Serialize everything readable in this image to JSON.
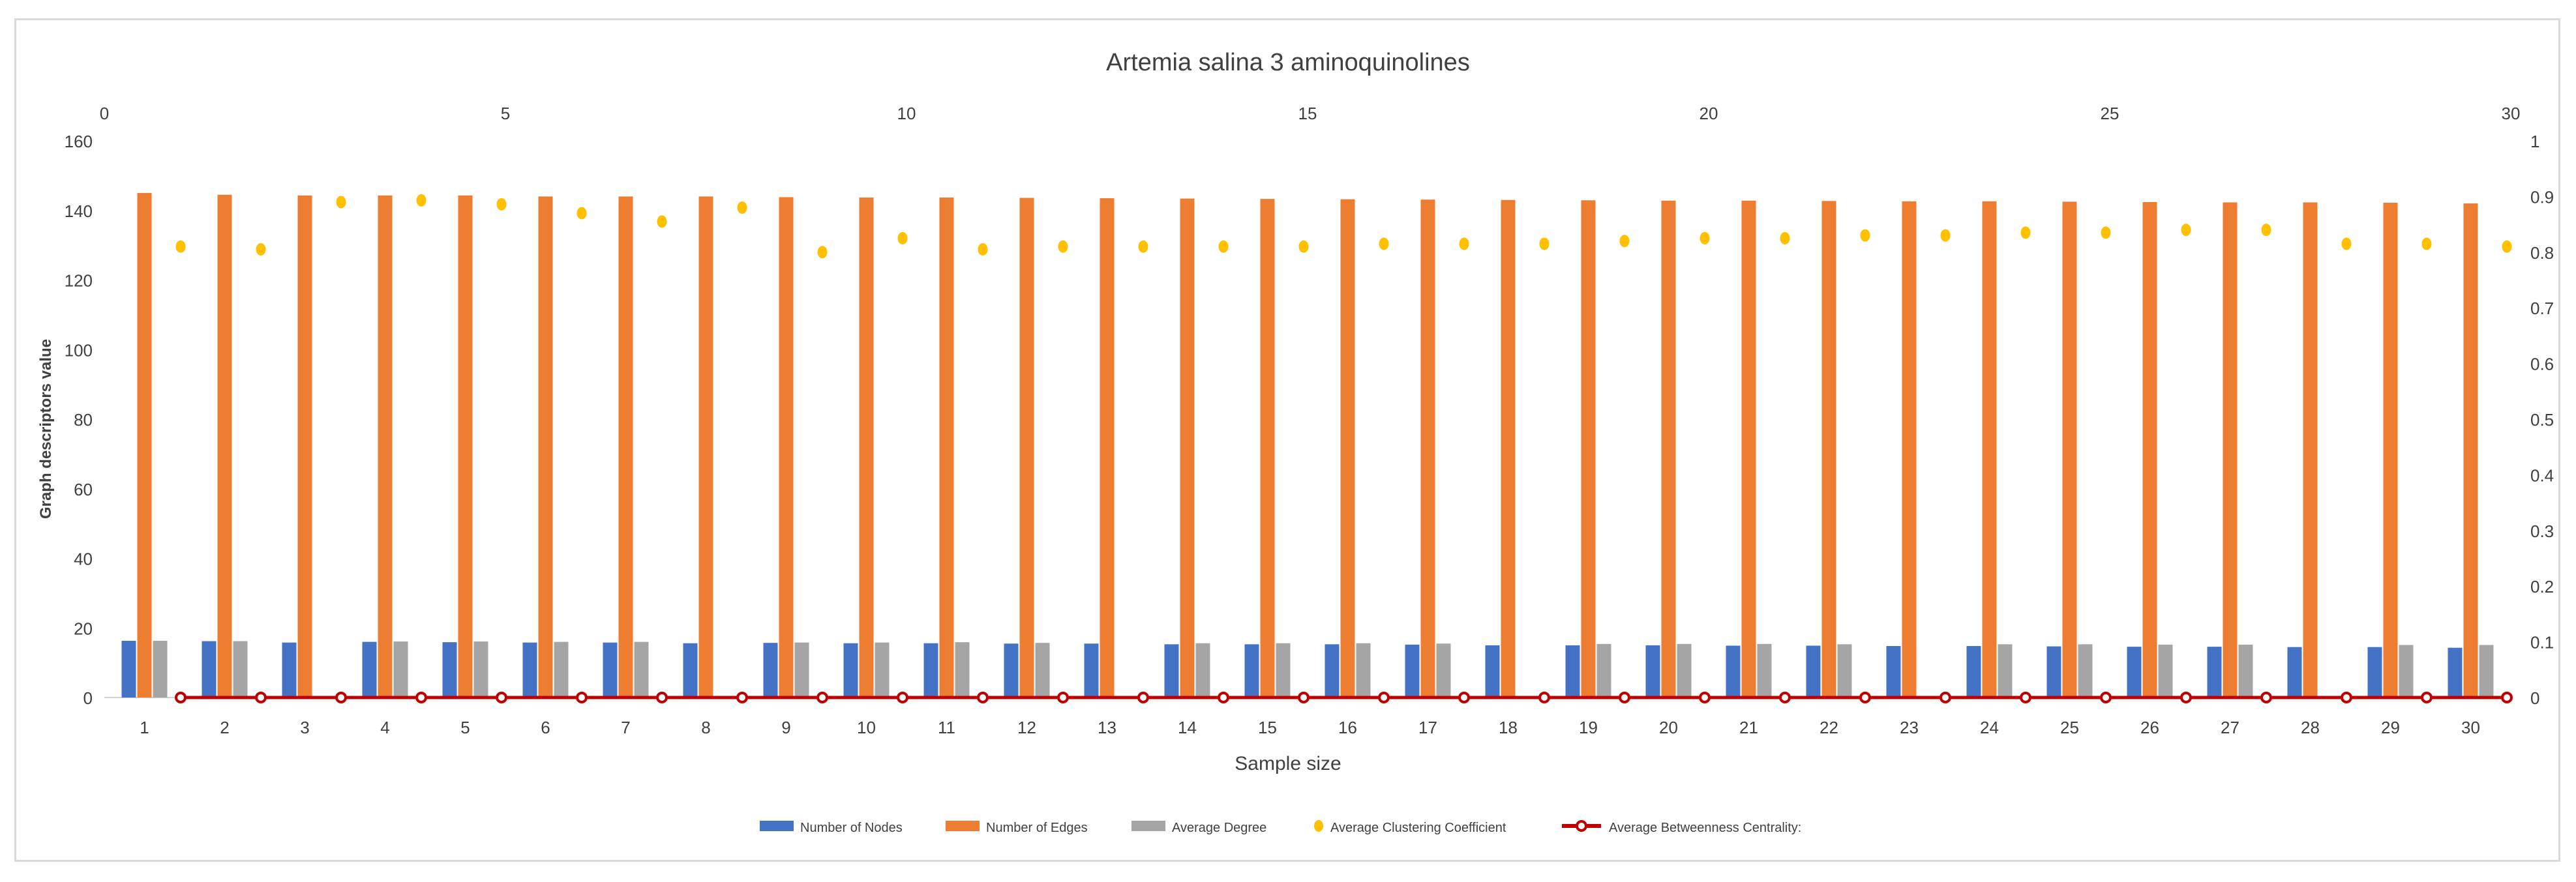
{
  "chart_data": {
    "type": "bar",
    "title": "Artemia salina 3 aminoquinolines",
    "xlabel": "Sample size",
    "ylabel": "Graph descriptors value",
    "categories": [
      "1",
      "2",
      "3",
      "4",
      "5",
      "6",
      "7",
      "8",
      "9",
      "10",
      "11",
      "12",
      "13",
      "14",
      "15",
      "16",
      "17",
      "18",
      "19",
      "20",
      "21",
      "22",
      "23",
      "24",
      "25",
      "26",
      "27",
      "28",
      "29",
      "30"
    ],
    "ylim": [
      0,
      160
    ],
    "yticks": [
      0,
      20,
      40,
      60,
      80,
      100,
      120,
      140,
      160
    ],
    "y2lim": [
      0,
      1
    ],
    "y2ticks": [
      "0",
      "0.1",
      "0.2",
      "0.3",
      "0.4",
      "0.5",
      "0.6",
      "0.7",
      "0.8",
      "0.9",
      "1"
    ],
    "x2lim": [
      0,
      30
    ],
    "x2ticks": [
      "0",
      "5",
      "10",
      "15",
      "20",
      "25",
      "30"
    ],
    "series": [
      {
        "name": "Number of Nodes",
        "axis": "left",
        "kind": "bar",
        "color": "#4472c4",
        "values": [
          16.3,
          16.2,
          15.8,
          16.0,
          15.9,
          15.8,
          15.8,
          15.6,
          15.7,
          15.6,
          15.6,
          15.5,
          15.5,
          15.3,
          15.3,
          15.3,
          15.2,
          15.0,
          15.0,
          15.0,
          14.9,
          14.9,
          14.8,
          14.8,
          14.7,
          14.6,
          14.6,
          14.5,
          14.5,
          14.3
        ]
      },
      {
        "name": "Number of Edges",
        "axis": "left",
        "kind": "bar",
        "color": "#ed7d31",
        "values": [
          145,
          144.5,
          144.3,
          144.3,
          144.3,
          144,
          144,
          144,
          143.8,
          143.7,
          143.7,
          143.6,
          143.5,
          143.4,
          143.3,
          143.2,
          143.1,
          143.0,
          142.9,
          142.8,
          142.8,
          142.7,
          142.6,
          142.6,
          142.5,
          142.4,
          142.3,
          142.3,
          142.2,
          142.0
        ]
      },
      {
        "name": "Average Degree",
        "axis": "left",
        "kind": "bar",
        "color": "#a5a5a5",
        "values": [
          16.3,
          16.2,
          0,
          16.1,
          16.1,
          16.0,
          16.0,
          0,
          15.8,
          15.8,
          15.9,
          15.7,
          0,
          15.6,
          15.6,
          15.6,
          15.5,
          0,
          15.4,
          15.4,
          15.4,
          15.3,
          0,
          15.3,
          15.3,
          15.2,
          15.2,
          0,
          15.1,
          15.1
        ]
      },
      {
        "name": "Average Clustering Coefficient",
        "axis": "right",
        "kind": "scatter",
        "color": "#ffc000",
        "values": [
          0.81,
          0.805,
          0.89,
          0.893,
          0.886,
          0.87,
          0.855,
          0.88,
          0.8,
          0.825,
          0.805,
          0.81,
          0.81,
          0.81,
          0.81,
          0.815,
          0.815,
          0.815,
          0.82,
          0.825,
          0.825,
          0.83,
          0.83,
          0.835,
          0.835,
          0.84,
          0.84,
          0.815,
          0.815,
          0.81
        ]
      },
      {
        "name": "Average Betweenness Centrality:",
        "axis": "right",
        "kind": "line",
        "color": "#c00000",
        "values": [
          0,
          0,
          0,
          0,
          0,
          0,
          0,
          0,
          0,
          0,
          0,
          0,
          0,
          0,
          0,
          0,
          0,
          0,
          0,
          0,
          0,
          0,
          0,
          0,
          0,
          0,
          0,
          0,
          0,
          0
        ]
      }
    ],
    "legend": "bottom",
    "grid": false
  }
}
